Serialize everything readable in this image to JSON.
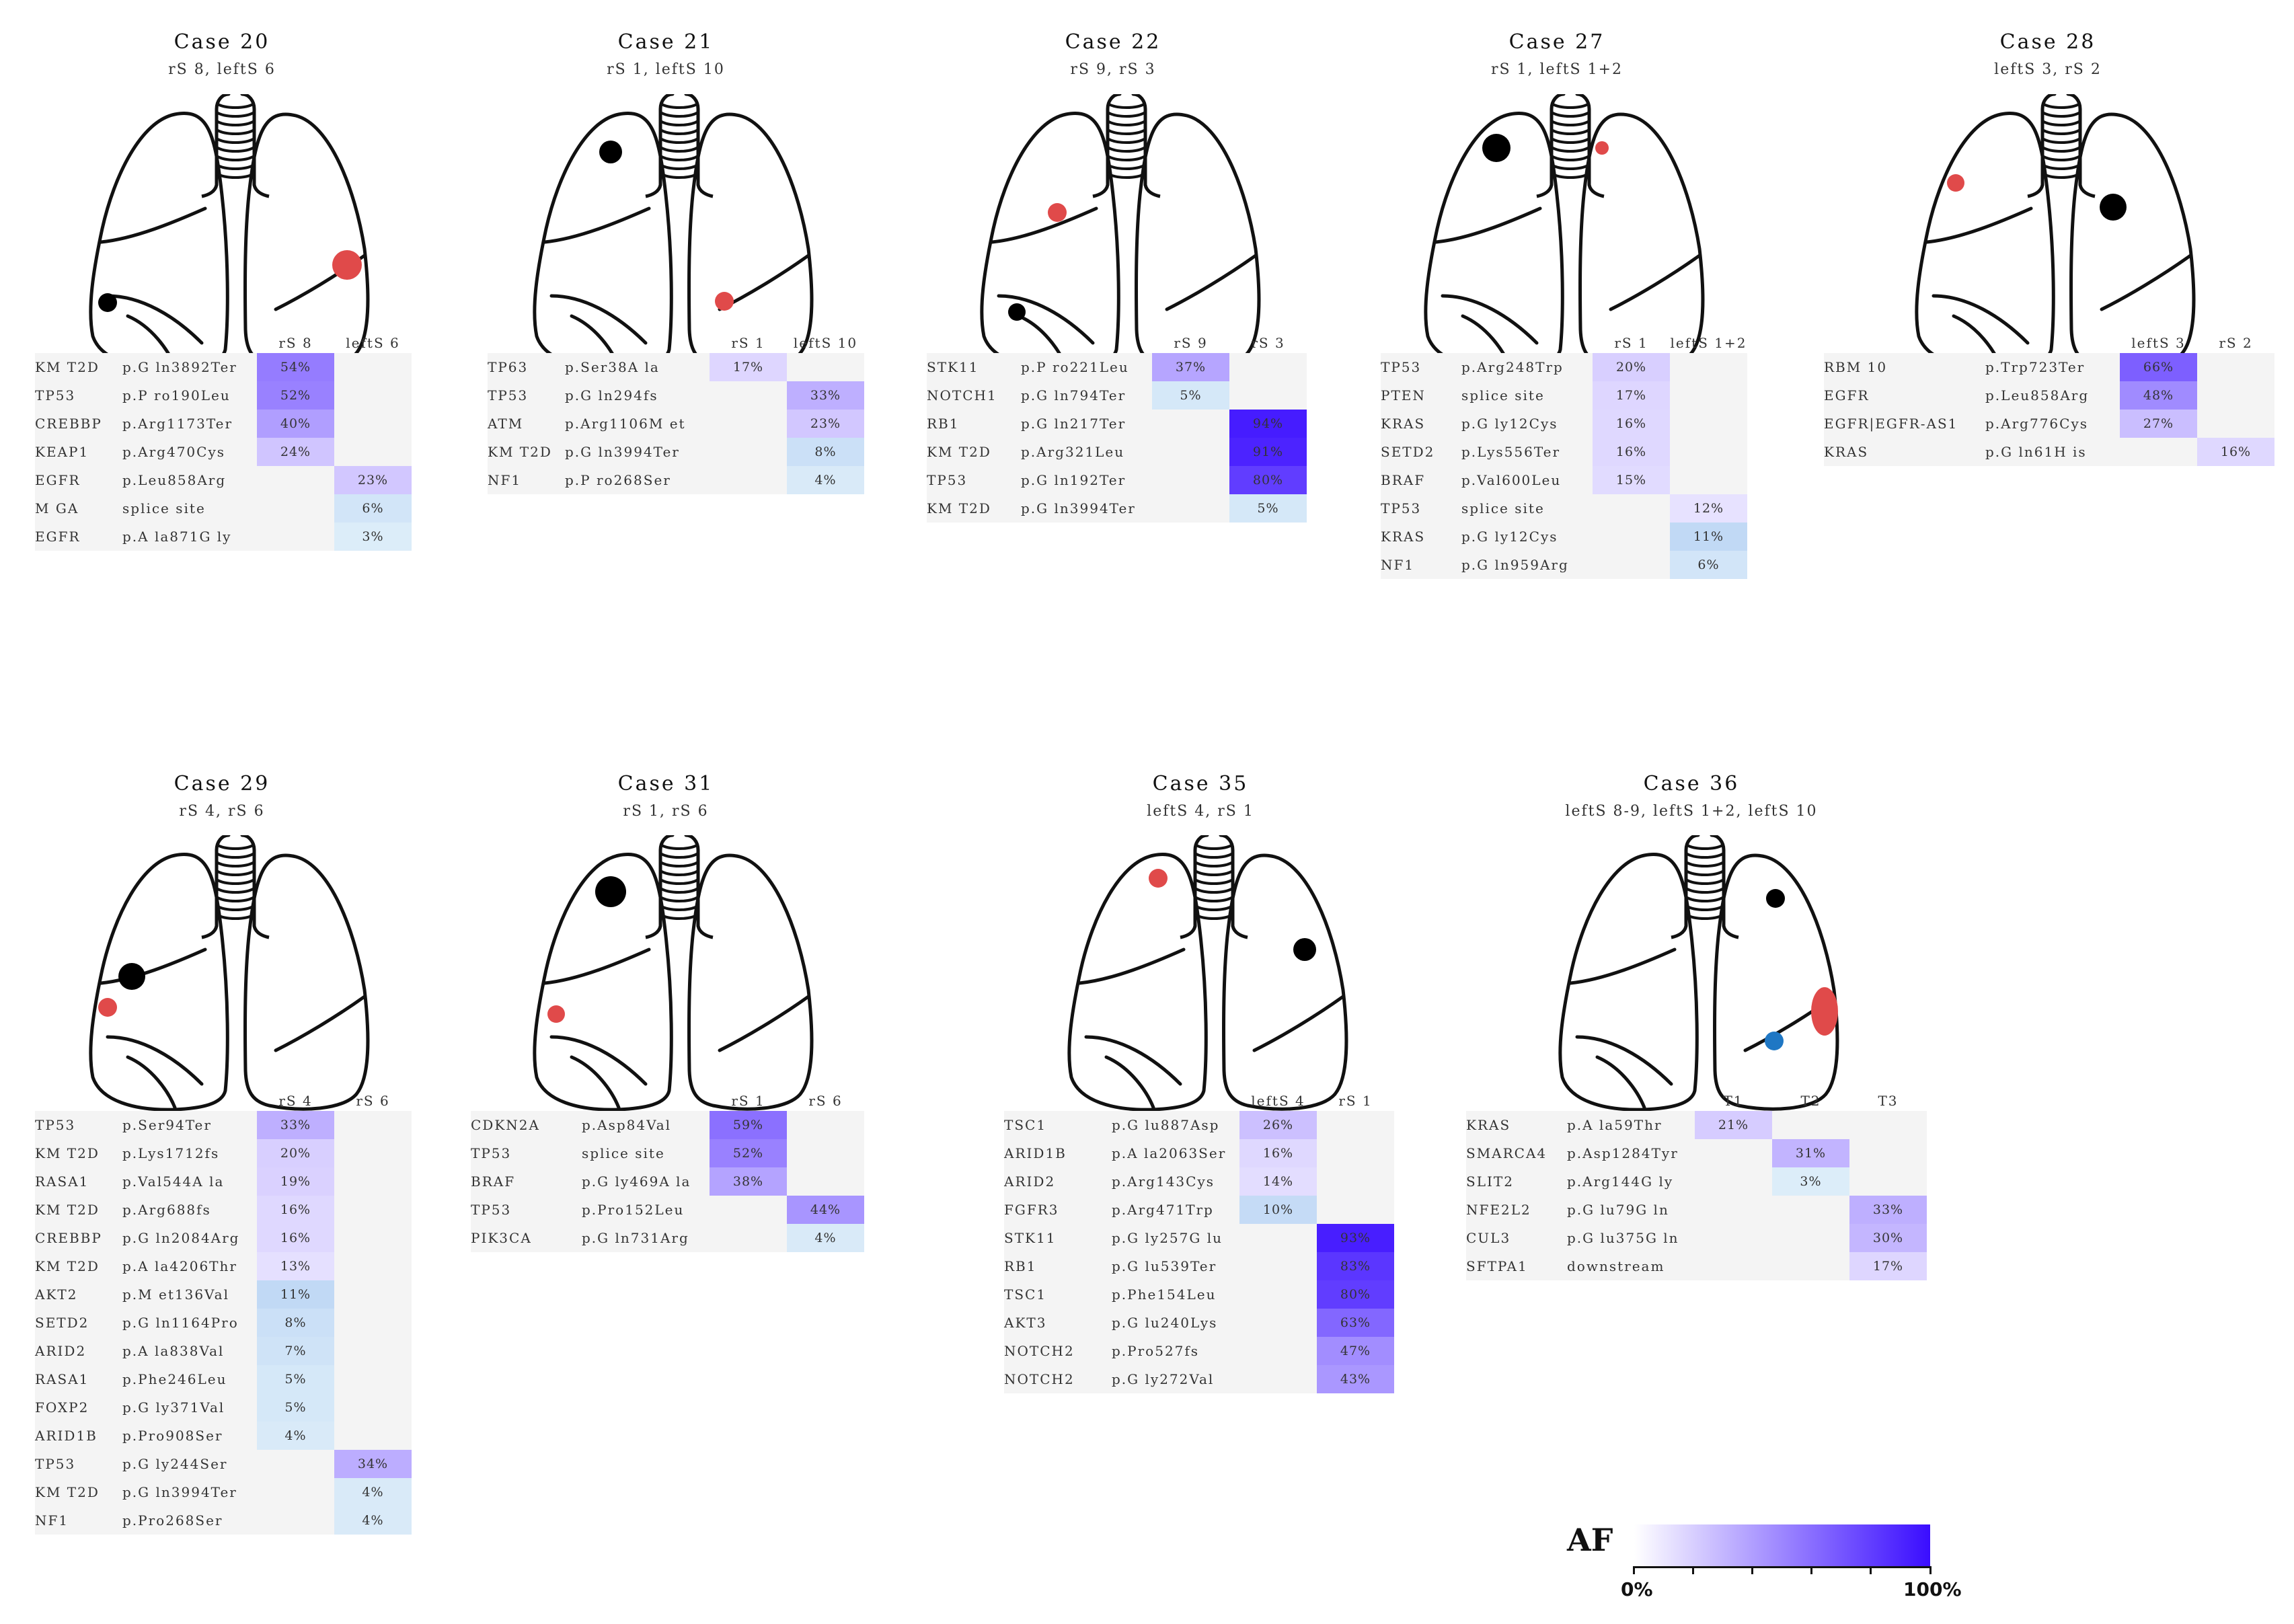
{
  "legend": {
    "label": "AF",
    "min_label": "0%",
    "max_label": "100%",
    "color_low": "#ffffff",
    "color_high": "#3a0dff"
  },
  "colors": {
    "tumor_red": "#e04a4a",
    "tumor_black": "#000000",
    "tumor_blue": "#1f77c4",
    "row_bg": "#f4f4f4"
  },
  "cases": [
    {
      "title": "Case 20",
      "sites": "rS 8, leftS 6",
      "columns": [
        "rS 8",
        "leftS 6"
      ],
      "rows": [
        {
          "gene": "KM T2D",
          "mut": "p.G ln3892Ter",
          "col": 0,
          "af": 54,
          "label": "54%"
        },
        {
          "gene": "TP53",
          "mut": "p.P ro190Leu",
          "col": 0,
          "af": 52,
          "label": "52%"
        },
        {
          "gene": "CREBBP",
          "mut": "p.Arg1173Ter",
          "col": 0,
          "af": 40,
          "label": "40%"
        },
        {
          "gene": "KEAP1",
          "mut": "p.Arg470Cys",
          "col": 0,
          "af": 24,
          "label": "24%"
        },
        {
          "gene": "EGFR",
          "mut": "p.Leu858Arg",
          "col": 1,
          "af": 23,
          "label": "23%"
        },
        {
          "gene": "M GA",
          "mut": "splice site",
          "col": 1,
          "af": 6,
          "label": "6%"
        },
        {
          "gene": "EGFR",
          "mut": "p.A la871G ly",
          "col": 1,
          "af": 3,
          "label": "3%"
        }
      ]
    },
    {
      "title": "Case 21",
      "sites": "rS 1, leftS 10",
      "columns": [
        "rS 1",
        "leftS 10"
      ],
      "rows": [
        {
          "gene": "TP63",
          "mut": "p.Ser38A la",
          "col": 0,
          "af": 17,
          "label": "17%"
        },
        {
          "gene": "TP53",
          "mut": "p.G ln294fs",
          "col": 1,
          "af": 33,
          "label": "33%"
        },
        {
          "gene": "ATM",
          "mut": "p.Arg1106M et",
          "col": 1,
          "af": 23,
          "label": "23%"
        },
        {
          "gene": "KM T2D",
          "mut": "p.G ln3994Ter",
          "col": 1,
          "af": 8,
          "label": "8%"
        },
        {
          "gene": "NF1",
          "mut": "p.P ro268Ser",
          "col": 1,
          "af": 4,
          "label": "4%"
        }
      ]
    },
    {
      "title": "Case 22",
      "sites": "rS 9, rS 3",
      "columns": [
        "rS 9",
        "rS 3"
      ],
      "rows": [
        {
          "gene": "STK11",
          "mut": "p.P ro221Leu",
          "col": 0,
          "af": 37,
          "label": "37%"
        },
        {
          "gene": "NOTCH1",
          "mut": "p.G ln794Ter",
          "col": 0,
          "af": 5,
          "label": "5%"
        },
        {
          "gene": "RB1",
          "mut": "p.G ln217Ter",
          "col": 1,
          "af": 94,
          "label": "94%"
        },
        {
          "gene": "KM T2D",
          "mut": "p.Arg321Leu",
          "col": 1,
          "af": 91,
          "label": "91%"
        },
        {
          "gene": "TP53",
          "mut": "p.G ln192Ter",
          "col": 1,
          "af": 80,
          "label": "80%"
        },
        {
          "gene": "KM T2D",
          "mut": "p.G ln3994Ter",
          "col": 1,
          "af": 5,
          "label": "5%"
        }
      ]
    },
    {
      "title": "Case 27",
      "sites": "rS 1, leftS 1+2",
      "columns": [
        "rS 1",
        "leftS 1+2"
      ],
      "rows": [
        {
          "gene": "TP53",
          "mut": "p.Arg248Trp",
          "col": 0,
          "af": 20,
          "label": "20%"
        },
        {
          "gene": "PTEN",
          "mut": "splice site",
          "col": 0,
          "af": 17,
          "label": "17%"
        },
        {
          "gene": "KRAS",
          "mut": "p.G ly12Cys",
          "col": 0,
          "af": 16,
          "label": "16%"
        },
        {
          "gene": "SETD2",
          "mut": "p.Lys556Ter",
          "col": 0,
          "af": 16,
          "label": "16%"
        },
        {
          "gene": "BRAF",
          "mut": "p.Val600Leu",
          "col": 0,
          "af": 15,
          "label": "15%"
        },
        {
          "gene": "TP53",
          "mut": "splice site",
          "col": 1,
          "af": 12,
          "label": "12%"
        },
        {
          "gene": "KRAS",
          "mut": "p.G ly12Cys",
          "col": 1,
          "af": 11,
          "label": "11%"
        },
        {
          "gene": "NF1",
          "mut": "p.G ln959Arg",
          "col": 1,
          "af": 6,
          "label": "6%"
        }
      ]
    },
    {
      "title": "Case 28",
      "sites": "leftS 3, rS 2",
      "columns": [
        "leftS 3",
        "rS 2"
      ],
      "rows": [
        {
          "gene": "RBM 10",
          "mut": "p.Trp723Ter",
          "col": 0,
          "af": 66,
          "label": "66%"
        },
        {
          "gene": "EGFR",
          "mut": "p.Leu858Arg",
          "col": 0,
          "af": 48,
          "label": "48%"
        },
        {
          "gene": "EGFR|EGFR-AS1",
          "mut": "p.Arg776Cys",
          "col": 0,
          "af": 27,
          "label": "27%"
        },
        {
          "gene": "KRAS",
          "mut": "p.G ln61H is",
          "col": 1,
          "af": 16,
          "label": "16%"
        }
      ]
    },
    {
      "title": "Case 29",
      "sites": "rS 4, rS 6",
      "columns": [
        "rS 4",
        "rS 6"
      ],
      "rows": [
        {
          "gene": "TP53",
          "mut": "p.Ser94Ter",
          "col": 0,
          "af": 33,
          "label": "33%"
        },
        {
          "gene": "KM T2D",
          "mut": "p.Lys1712fs",
          "col": 0,
          "af": 20,
          "label": "20%"
        },
        {
          "gene": "RASA1",
          "mut": "p.Val544A la",
          "col": 0,
          "af": 19,
          "label": "19%"
        },
        {
          "gene": "KM T2D",
          "mut": "p.Arg688fs",
          "col": 0,
          "af": 16,
          "label": "16%"
        },
        {
          "gene": "CREBBP",
          "mut": "p.G ln2084Arg",
          "col": 0,
          "af": 16,
          "label": "16%"
        },
        {
          "gene": "KM T2D",
          "mut": "p.A la4206Thr",
          "col": 0,
          "af": 13,
          "label": "13%"
        },
        {
          "gene": "AKT2",
          "mut": "p.M et136Val",
          "col": 0,
          "af": 11,
          "label": "11%"
        },
        {
          "gene": "SETD2",
          "mut": "p.G ln1164Pro",
          "col": 0,
          "af": 8,
          "label": "8%"
        },
        {
          "gene": "ARID2",
          "mut": "p.A la838Val",
          "col": 0,
          "af": 7,
          "label": "7%"
        },
        {
          "gene": "RASA1",
          "mut": "p.Phe246Leu",
          "col": 0,
          "af": 5,
          "label": "5%"
        },
        {
          "gene": "FOXP2",
          "mut": "p.G ly371Val",
          "col": 0,
          "af": 5,
          "label": "5%"
        },
        {
          "gene": "ARID1B",
          "mut": "p.Pro908Ser",
          "col": 0,
          "af": 4,
          "label": "4%"
        },
        {
          "gene": "TP53",
          "mut": "p.G ly244Ser",
          "col": 1,
          "af": 34,
          "label": "34%"
        },
        {
          "gene": "KM T2D",
          "mut": "p.G ln3994Ter",
          "col": 1,
          "af": 4,
          "label": "4%"
        },
        {
          "gene": "NF1",
          "mut": "p.Pro268Ser",
          "col": 1,
          "af": 4,
          "label": "4%"
        }
      ]
    },
    {
      "title": "Case 31",
      "sites": "rS 1, rS 6",
      "columns": [
        "rS 1",
        "rS 6"
      ],
      "rows": [
        {
          "gene": "CDKN2A",
          "mut": "p.Asp84Val",
          "col": 0,
          "af": 59,
          "label": "59%"
        },
        {
          "gene": "TP53",
          "mut": "splice site",
          "col": 0,
          "af": 52,
          "label": "52%"
        },
        {
          "gene": "BRAF",
          "mut": "p.G ly469A la",
          "col": 0,
          "af": 38,
          "label": "38%"
        },
        {
          "gene": "TP53",
          "mut": "p.Pro152Leu",
          "col": 1,
          "af": 44,
          "label": "44%"
        },
        {
          "gene": "PIK3CA",
          "mut": "p.G ln731Arg",
          "col": 1,
          "af": 4,
          "label": "4%"
        }
      ]
    },
    {
      "title": "Case 35",
      "sites": "leftS 4, rS 1",
      "columns": [
        "leftS 4",
        "rS 1"
      ],
      "rows": [
        {
          "gene": "TSC1",
          "mut": "p.G lu887Asp",
          "col": 0,
          "af": 26,
          "label": "26%"
        },
        {
          "gene": "ARID1B",
          "mut": "p.A la2063Ser",
          "col": 0,
          "af": 16,
          "label": "16%"
        },
        {
          "gene": "ARID2",
          "mut": "p.Arg143Cys",
          "col": 0,
          "af": 14,
          "label": "14%"
        },
        {
          "gene": "FGFR3",
          "mut": "p.Arg471Trp",
          "col": 0,
          "af": 10,
          "label": "10%"
        },
        {
          "gene": "STK11",
          "mut": "p.G ly257G lu",
          "col": 1,
          "af": 93,
          "label": "93%"
        },
        {
          "gene": "RB1",
          "mut": "p.G lu539Ter",
          "col": 1,
          "af": 83,
          "label": "83%"
        },
        {
          "gene": "TSC1",
          "mut": "p.Phe154Leu",
          "col": 1,
          "af": 80,
          "label": "80%"
        },
        {
          "gene": "AKT3",
          "mut": "p.G lu240Lys",
          "col": 1,
          "af": 63,
          "label": "63%"
        },
        {
          "gene": "NOTCH2",
          "mut": "p.Pro527fs",
          "col": 1,
          "af": 47,
          "label": "47%"
        },
        {
          "gene": "NOTCH2",
          "mut": "p.G ly272Val",
          "col": 1,
          "af": 43,
          "label": "43%"
        }
      ]
    },
    {
      "title": "Case 36",
      "sites": "leftS 8-9, leftS 1+2, leftS 10",
      "columns": [
        "T1",
        "T2",
        "T3"
      ],
      "rows": [
        {
          "gene": "KRAS",
          "mut": "p.A la59Thr",
          "col": 0,
          "af": 21,
          "label": "21%"
        },
        {
          "gene": "SMARCA4",
          "mut": "p.Asp1284Tyr",
          "col": 1,
          "af": 31,
          "label": "31%"
        },
        {
          "gene": "SLIT2",
          "mut": "p.Arg144G ly",
          "col": 1,
          "af": 3,
          "label": "3%"
        },
        {
          "gene": "NFE2L2",
          "mut": "p.G lu79G ln",
          "col": 2,
          "af": 33,
          "label": "33%"
        },
        {
          "gene": "CUL3",
          "mut": "p.G lu375G ln",
          "col": 2,
          "af": 30,
          "label": "30%"
        },
        {
          "gene": "SFTPA1",
          "mut": "downstream",
          "col": 2,
          "af": 17,
          "label": "17%"
        }
      ]
    }
  ]
}
